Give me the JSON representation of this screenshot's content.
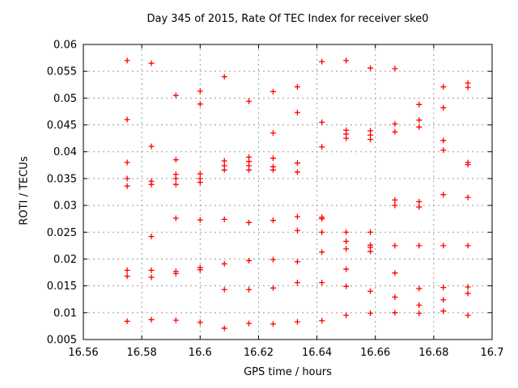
{
  "window": {
    "background_color": "#ffffff"
  },
  "chart_data": {
    "type": "scatter",
    "title": "Day 345 of 2015, Rate Of TEC Index for receiver ske0",
    "xlabel": "GPS time / hours",
    "ylabel": "ROTI / TECUs",
    "xlim": [
      16.56,
      16.7
    ],
    "ylim": [
      0.005,
      0.06
    ],
    "xticks": [
      16.56,
      16.58,
      16.6,
      16.62,
      16.64,
      16.66,
      16.68,
      16.7
    ],
    "xtick_labels": [
      "16.56",
      "16.58",
      "16.6",
      "16.62",
      "16.64",
      "16.66",
      "16.68",
      "16.7"
    ],
    "yticks": [
      0.005,
      0.01,
      0.015,
      0.02,
      0.025,
      0.03,
      0.035,
      0.04,
      0.045,
      0.05,
      0.055,
      0.06
    ],
    "ytick_labels": [
      "0.005",
      "0.01",
      "0.015",
      "0.02",
      "0.025",
      "0.03",
      "0.035",
      "0.04",
      "0.045",
      "0.05",
      "0.055",
      "0.06"
    ],
    "grid": true,
    "legend_position": "none",
    "marker": "plus",
    "colors": {
      "marker": "#ff0000",
      "grid": "#9b9b9b",
      "axis": "#000000"
    },
    "series": [
      {
        "name": "ROTI",
        "points": [
          [
            16.575,
            0.057
          ],
          [
            16.575,
            0.046
          ],
          [
            16.575,
            0.038
          ],
          [
            16.575,
            0.035
          ],
          [
            16.575,
            0.0336
          ],
          [
            16.575,
            0.0179
          ],
          [
            16.575,
            0.0168
          ],
          [
            16.575,
            0.0084
          ],
          [
            16.5833,
            0.0565
          ],
          [
            16.5833,
            0.041
          ],
          [
            16.5833,
            0.0345
          ],
          [
            16.5833,
            0.0339
          ],
          [
            16.5833,
            0.0242
          ],
          [
            16.5833,
            0.0179
          ],
          [
            16.5833,
            0.0166
          ],
          [
            16.5833,
            0.0087
          ],
          [
            16.5917,
            0.0505
          ],
          [
            16.5917,
            0.0385
          ],
          [
            16.5917,
            0.0358
          ],
          [
            16.5917,
            0.035
          ],
          [
            16.5917,
            0.0339
          ],
          [
            16.5917,
            0.0276
          ],
          [
            16.5917,
            0.0177
          ],
          [
            16.5917,
            0.0173
          ],
          [
            16.5917,
            0.0086
          ],
          [
            16.6,
            0.0513
          ],
          [
            16.6,
            0.0489
          ],
          [
            16.6,
            0.0359
          ],
          [
            16.6,
            0.035
          ],
          [
            16.6,
            0.0343
          ],
          [
            16.6,
            0.0273
          ],
          [
            16.6,
            0.0184
          ],
          [
            16.6,
            0.018
          ],
          [
            16.6,
            0.0082
          ],
          [
            16.6083,
            0.054
          ],
          [
            16.6083,
            0.0383
          ],
          [
            16.6083,
            0.0374
          ],
          [
            16.6083,
            0.0366
          ],
          [
            16.6083,
            0.0274
          ],
          [
            16.6083,
            0.0191
          ],
          [
            16.6083,
            0.0143
          ],
          [
            16.6083,
            0.0071
          ],
          [
            16.6167,
            0.0494
          ],
          [
            16.6167,
            0.039
          ],
          [
            16.6167,
            0.0382
          ],
          [
            16.6167,
            0.0374
          ],
          [
            16.6167,
            0.0366
          ],
          [
            16.6167,
            0.0268
          ],
          [
            16.6167,
            0.0197
          ],
          [
            16.6167,
            0.0143
          ],
          [
            16.6167,
            0.008
          ],
          [
            16.625,
            0.0512
          ],
          [
            16.625,
            0.0435
          ],
          [
            16.625,
            0.0388
          ],
          [
            16.625,
            0.0372
          ],
          [
            16.625,
            0.0366
          ],
          [
            16.625,
            0.0272
          ],
          [
            16.625,
            0.0199
          ],
          [
            16.625,
            0.0146
          ],
          [
            16.625,
            0.0079
          ],
          [
            16.6333,
            0.0521
          ],
          [
            16.6333,
            0.0473
          ],
          [
            16.6333,
            0.0379
          ],
          [
            16.6333,
            0.0362
          ],
          [
            16.6333,
            0.0279
          ],
          [
            16.6333,
            0.0253
          ],
          [
            16.6333,
            0.0195
          ],
          [
            16.6333,
            0.0156
          ],
          [
            16.6333,
            0.0083
          ],
          [
            16.6417,
            0.0568
          ],
          [
            16.6417,
            0.0455
          ],
          [
            16.6417,
            0.0409
          ],
          [
            16.6417,
            0.0278
          ],
          [
            16.6417,
            0.0275
          ],
          [
            16.6417,
            0.025
          ],
          [
            16.6417,
            0.0213
          ],
          [
            16.6417,
            0.0156
          ],
          [
            16.6417,
            0.0085
          ],
          [
            16.65,
            0.057
          ],
          [
            16.65,
            0.044
          ],
          [
            16.65,
            0.0433
          ],
          [
            16.65,
            0.0425
          ],
          [
            16.65,
            0.025
          ],
          [
            16.65,
            0.0233
          ],
          [
            16.65,
            0.0219
          ],
          [
            16.65,
            0.0181
          ],
          [
            16.65,
            0.0149
          ],
          [
            16.65,
            0.0095
          ],
          [
            16.6583,
            0.0556
          ],
          [
            16.6583,
            0.0439
          ],
          [
            16.6583,
            0.0431
          ],
          [
            16.6583,
            0.0423
          ],
          [
            16.6583,
            0.025
          ],
          [
            16.6583,
            0.0226
          ],
          [
            16.6583,
            0.0222
          ],
          [
            16.6583,
            0.0214
          ],
          [
            16.6583,
            0.014
          ],
          [
            16.6583,
            0.0099
          ],
          [
            16.6667,
            0.0555
          ],
          [
            16.6667,
            0.0452
          ],
          [
            16.6667,
            0.0437
          ],
          [
            16.6667,
            0.031
          ],
          [
            16.6667,
            0.03
          ],
          [
            16.6667,
            0.0225
          ],
          [
            16.6667,
            0.0174
          ],
          [
            16.6667,
            0.0129
          ],
          [
            16.6667,
            0.01
          ],
          [
            16.675,
            0.0488
          ],
          [
            16.675,
            0.0459
          ],
          [
            16.675,
            0.0446
          ],
          [
            16.675,
            0.0307
          ],
          [
            16.675,
            0.0297
          ],
          [
            16.675,
            0.0225
          ],
          [
            16.675,
            0.0145
          ],
          [
            16.675,
            0.0114
          ],
          [
            16.675,
            0.0099
          ],
          [
            16.6833,
            0.0521
          ],
          [
            16.6833,
            0.0482
          ],
          [
            16.6833,
            0.0421
          ],
          [
            16.6833,
            0.0403
          ],
          [
            16.6833,
            0.032
          ],
          [
            16.6833,
            0.0225
          ],
          [
            16.6833,
            0.0147
          ],
          [
            16.6833,
            0.0124
          ],
          [
            16.6833,
            0.0103
          ],
          [
            16.6917,
            0.0528
          ],
          [
            16.6917,
            0.052
          ],
          [
            16.6917,
            0.038
          ],
          [
            16.6917,
            0.0376
          ],
          [
            16.6917,
            0.0315
          ],
          [
            16.6917,
            0.0225
          ],
          [
            16.6917,
            0.0148
          ],
          [
            16.6917,
            0.0136
          ],
          [
            16.6917,
            0.0095
          ]
        ]
      }
    ]
  }
}
